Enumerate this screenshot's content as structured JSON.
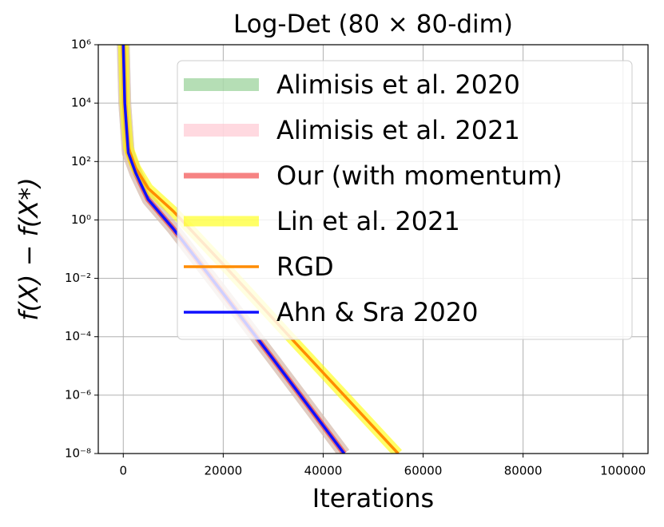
{
  "chart_data": {
    "type": "line",
    "title": "Log-Det (80 × 80-dim)",
    "xlabel": "Iterations",
    "ylabel": "f(X) − f(X*)",
    "xlim": [
      -5000,
      105000
    ],
    "xticks": [
      0,
      20000,
      40000,
      60000,
      80000,
      100000
    ],
    "ylim": [
      1e-08,
      1000000.0
    ],
    "ylog": true,
    "yticks": [
      {
        "value": 1e-08,
        "label": "10⁻⁸"
      },
      {
        "value": 1e-06,
        "label": "10⁻⁶"
      },
      {
        "value": 0.0001,
        "label": "10⁻⁴"
      },
      {
        "value": 0.01,
        "label": "10⁻²"
      },
      {
        "value": 1,
        "label": "10⁰"
      },
      {
        "value": 100,
        "label": "10²"
      },
      {
        "value": 10000,
        "label": "10⁴"
      },
      {
        "value": 1000000,
        "label": "10⁶"
      }
    ],
    "grid": true,
    "legend": "upper right",
    "series": [
      {
        "name": "Alimisis et al. 2020",
        "color": "#2ca02c",
        "alpha": 0.35,
        "linewidth": 16,
        "x": [
          0,
          300,
          1000,
          2500,
          5000,
          10000,
          20000,
          30000,
          44200
        ],
        "values": [
          1000000,
          10000,
          200,
          40,
          5,
          0.5,
          0.003,
          1.7e-05,
          1e-08
        ]
      },
      {
        "name": "Alimisis et al. 2021",
        "color": "#ffc0cb",
        "alpha": 0.6,
        "linewidth": 16,
        "x": [
          0,
          300,
          1000,
          2500,
          5000,
          10000,
          20000,
          30000,
          44200
        ],
        "values": [
          1000000,
          10000,
          200,
          40,
          5,
          0.5,
          0.003,
          1.7e-05,
          1e-08
        ]
      },
      {
        "name": "Our (with momentum)",
        "color": "#f03030",
        "alpha": 0.6,
        "linewidth": 7,
        "x": [
          0,
          300,
          1000,
          2500,
          5000,
          10000,
          20000,
          30000,
          44200
        ],
        "values": [
          1000000,
          10000,
          200,
          40,
          5,
          0.5,
          0.003,
          1.7e-05,
          1e-08
        ]
      },
      {
        "name": "Lin et al. 2021",
        "color": "#ffff00",
        "alpha": 0.6,
        "linewidth": 13,
        "x": [
          0,
          300,
          1000,
          2500,
          5000,
          10000,
          20000,
          33300,
          55000
        ],
        "values": [
          1000000,
          10000,
          300,
          60,
          12,
          2,
          0.03,
          0.0001,
          1e-08
        ]
      },
      {
        "name": "RGD",
        "color": "#ff8c00",
        "alpha": 1,
        "linewidth": 3.5,
        "x": [
          0,
          300,
          1000,
          2500,
          5000,
          10000,
          20000,
          33300,
          55000
        ],
        "values": [
          1000000,
          10000,
          300,
          60,
          12,
          2,
          0.03,
          0.0001,
          1e-08
        ]
      },
      {
        "name": "Ahn & Sra 2020",
        "color": "#1010ff",
        "alpha": 1,
        "linewidth": 3.5,
        "x": [
          0,
          300,
          1000,
          2500,
          5000,
          10000,
          20000,
          30000,
          44200
        ],
        "values": [
          1000000,
          10000,
          200,
          40,
          5,
          0.5,
          0.003,
          1.7e-05,
          1e-08
        ]
      }
    ]
  }
}
